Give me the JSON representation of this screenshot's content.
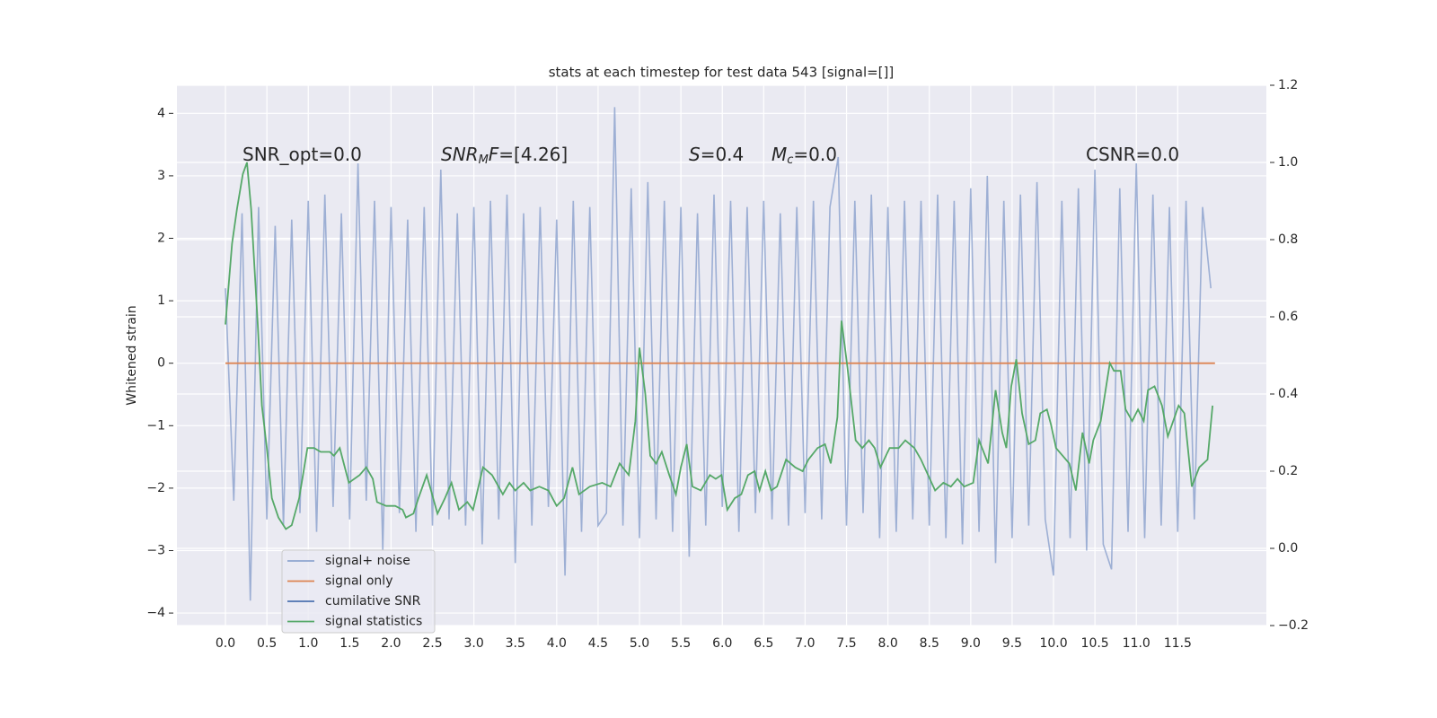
{
  "chart_data": {
    "type": "line",
    "title": "stats at each timestep for test data 543 [signal=[]]",
    "ylabel": "Whitened strain",
    "xlim": [
      -0.586,
      12.57
    ],
    "ylim": [
      -4.2,
      4.45
    ],
    "y2lim": [
      -0.2,
      1.2
    ],
    "grid": true,
    "legend": "lower left",
    "xticks": [
      {
        "value": 0,
        "label": "0.0"
      },
      0.5,
      {
        "value": 1,
        "label": "1.0"
      },
      1.5,
      {
        "value": 2,
        "label": "2.0"
      },
      2.5,
      {
        "value": 3,
        "label": "3.0"
      },
      3.5,
      {
        "value": 4,
        "label": "4.0"
      },
      4.5,
      {
        "value": 5,
        "label": "5.0"
      },
      5.5,
      {
        "value": 6,
        "label": "6.0"
      },
      6.5,
      {
        "value": 7,
        "label": "7.0"
      },
      7.5,
      {
        "value": 8,
        "label": "8.0"
      },
      8.5,
      {
        "value": 9,
        "label": "9.0"
      },
      9.5,
      {
        "value": 10,
        "label": "10.0"
      },
      10.5,
      {
        "value": 11,
        "label": "11.0"
      },
      11.5
    ],
    "yticks": [
      {
        "value": -4,
        "label": "−4"
      },
      {
        "value": -3,
        "label": "−3"
      },
      {
        "value": -2,
        "label": "−2"
      },
      {
        "value": -1,
        "label": "−1"
      },
      0,
      1,
      2,
      3,
      4
    ],
    "y2ticks": [
      {
        "value": -0.2,
        "label": "−0.2"
      },
      {
        "value": 0,
        "label": "0.0"
      },
      0.2,
      0.4,
      0.6,
      0.8,
      {
        "value": 1,
        "label": "1.0"
      },
      1.2
    ],
    "annotations": [
      [
        {
          "text": "SNR_opt=0.0"
        }
      ],
      [
        {
          "text": "SNR",
          "italic": true
        },
        {
          "text": "M",
          "italic": true,
          "sub": true
        },
        {
          "text": "F",
          "italic": true
        },
        {
          "text": "=[4.26]"
        }
      ],
      [
        {
          "text": "S",
          "italic": true
        },
        {
          "text": "=0.4"
        }
      ],
      [
        {
          "text": "M",
          "italic": true
        },
        {
          "text": "c",
          "italic": true,
          "sub": true
        },
        {
          "text": "=0.0"
        }
      ],
      [
        {
          "text": "CSNR=0.0"
        }
      ]
    ],
    "series": [
      {
        "name": "signal+ noise",
        "color": "#8fa5cf",
        "x": [
          0,
          0.1,
          0.2,
          0.3,
          0.4,
          0.5,
          0.6,
          0.7,
          0.8,
          0.9,
          1,
          1.1,
          1.2,
          1.3,
          1.4,
          1.5,
          1.6,
          1.7,
          1.8,
          1.9,
          2,
          2.1,
          2.2,
          2.3,
          2.4,
          2.5,
          2.6,
          2.7,
          2.8,
          2.9,
          3,
          3.1,
          3.2,
          3.3,
          3.4,
          3.5,
          3.6,
          3.7,
          3.8,
          3.9,
          4,
          4.1,
          4.2,
          4.3,
          4.4,
          4.5,
          4.6,
          4.7,
          4.8,
          4.9,
          5,
          5.1,
          5.2,
          5.3,
          5.4,
          5.5,
          5.6,
          5.7,
          5.8,
          5.9,
          6,
          6.1,
          6.2,
          6.3,
          6.4,
          6.5,
          6.6,
          6.7,
          6.8,
          6.9,
          7,
          7.1,
          7.2,
          7.3,
          7.4,
          7.5,
          7.6,
          7.7,
          7.8,
          7.9,
          8,
          8.1,
          8.2,
          8.3,
          8.4,
          8.5,
          8.6,
          8.7,
          8.8,
          8.9,
          9,
          9.1,
          9.2,
          9.3,
          9.4,
          9.5,
          9.6,
          9.7,
          9.8,
          9.9,
          10,
          10.1,
          10.2,
          10.3,
          10.4,
          10.5,
          10.6,
          10.7,
          10.8,
          10.9,
          11,
          11.1,
          11.2,
          11.3,
          11.4,
          11.5,
          11.6,
          11.7,
          11.8,
          11.9
        ],
        "values": [
          1.2,
          -2.2,
          2.4,
          -3.8,
          2.5,
          -2.5,
          2.2,
          -2.6,
          2.3,
          -2.4,
          2.6,
          -2.7,
          2.7,
          -2.3,
          2.4,
          -2.5,
          3.2,
          -2.2,
          2.6,
          -3.0,
          2.5,
          -2.4,
          2.3,
          -2.7,
          2.5,
          -2.6,
          3.1,
          -2.5,
          2.4,
          -2.6,
          2.5,
          -2.9,
          2.6,
          -2.5,
          2.7,
          -3.2,
          2.4,
          -2.6,
          2.5,
          -2.3,
          2.3,
          -3.4,
          2.6,
          -2.7,
          2.5,
          -2.6,
          -2.4,
          4.1,
          -2.6,
          2.8,
          -2.8,
          2.9,
          -2.5,
          2.6,
          -2.7,
          2.5,
          -3.1,
          2.4,
          -2.6,
          2.7,
          -2.3,
          2.6,
          -2.7,
          2.5,
          -2.4,
          2.6,
          -2.5,
          2.4,
          -2.6,
          2.5,
          -2.4,
          2.6,
          -2.5,
          2.5,
          3.3,
          -2.6,
          2.6,
          -2.4,
          2.7,
          -2.8,
          2.5,
          -2.7,
          2.6,
          -2.5,
          2.6,
          -2.6,
          2.7,
          -2.8,
          2.6,
          -2.9,
          2.8,
          -2.7,
          3.0,
          -3.2,
          2.6,
          -2.8,
          2.7,
          -2.6,
          2.9,
          -2.5,
          -3.4,
          2.6,
          -2.8,
          2.8,
          -3.0,
          3.1,
          -2.9,
          -3.3,
          2.8,
          -2.7,
          3.2,
          -2.8,
          2.7,
          -2.6,
          2.5,
          -2.7,
          2.6,
          -2.5,
          2.5,
          1.2
        ]
      },
      {
        "name": "signal only",
        "color": "#dd8452",
        "x": [
          0,
          11.95
        ],
        "values": [
          0,
          0
        ]
      },
      {
        "name": "cumilative SNR",
        "color": "#4c72b0",
        "x": [],
        "values": []
      },
      {
        "name": "signal statistics",
        "color": "#55a868",
        "axis": "y2",
        "x": [
          0,
          0.08,
          0.14,
          0.21,
          0.26,
          0.31,
          0.39,
          0.44,
          0.5,
          0.56,
          0.64,
          0.73,
          0.8,
          0.89,
          0.99,
          1.07,
          1.15,
          1.26,
          1.31,
          1.38,
          1.49,
          1.62,
          1.7,
          1.78,
          1.83,
          1.94,
          2.05,
          2.14,
          2.18,
          2.27,
          2.33,
          2.43,
          2.56,
          2.65,
          2.73,
          2.82,
          2.92,
          2.99,
          3.11,
          3.22,
          3.35,
          3.43,
          3.5,
          3.6,
          3.68,
          3.79,
          3.9,
          4.0,
          4.09,
          4.19,
          4.27,
          4.4,
          4.55,
          4.65,
          4.76,
          4.87,
          4.95,
          5.0,
          5.07,
          5.13,
          5.2,
          5.27,
          5.36,
          5.44,
          5.5,
          5.57,
          5.64,
          5.74,
          5.85,
          5.92,
          5.99,
          6.06,
          6.15,
          6.23,
          6.31,
          6.39,
          6.45,
          6.52,
          6.59,
          6.66,
          6.77,
          6.88,
          6.97,
          7.04,
          7.15,
          7.24,
          7.31,
          7.39,
          7.44,
          7.51,
          7.61,
          7.69,
          7.77,
          7.84,
          7.91,
          8.02,
          8.13,
          8.21,
          8.32,
          8.4,
          8.57,
          8.67,
          8.76,
          8.84,
          8.92,
          9.03,
          9.1,
          9.21,
          9.3,
          9.38,
          9.43,
          9.49,
          9.55,
          9.62,
          9.7,
          9.78,
          9.84,
          9.92,
          9.97,
          10.03,
          10.19,
          10.27,
          10.35,
          10.43,
          10.48,
          10.57,
          10.68,
          10.73,
          10.81,
          10.87,
          10.95,
          11.02,
          11.09,
          11.14,
          11.22,
          11.31,
          11.38,
          11.51,
          11.58,
          11.67,
          11.76,
          11.86,
          11.92
        ],
        "values": [
          0.58,
          0.79,
          0.88,
          0.97,
          1.0,
          0.88,
          0.58,
          0.37,
          0.26,
          0.13,
          0.08,
          0.05,
          0.06,
          0.13,
          0.26,
          0.26,
          0.25,
          0.25,
          0.24,
          0.26,
          0.17,
          0.19,
          0.21,
          0.18,
          0.12,
          0.11,
          0.11,
          0.1,
          0.08,
          0.09,
          0.13,
          0.19,
          0.09,
          0.13,
          0.17,
          0.1,
          0.12,
          0.1,
          0.21,
          0.19,
          0.14,
          0.17,
          0.15,
          0.17,
          0.15,
          0.16,
          0.15,
          0.11,
          0.13,
          0.21,
          0.14,
          0.16,
          0.17,
          0.16,
          0.22,
          0.19,
          0.33,
          0.52,
          0.4,
          0.24,
          0.22,
          0.25,
          0.19,
          0.14,
          0.21,
          0.27,
          0.16,
          0.15,
          0.19,
          0.18,
          0.19,
          0.1,
          0.13,
          0.14,
          0.19,
          0.2,
          0.15,
          0.2,
          0.15,
          0.16,
          0.23,
          0.21,
          0.2,
          0.23,
          0.26,
          0.27,
          0.22,
          0.34,
          0.59,
          0.47,
          0.28,
          0.26,
          0.28,
          0.26,
          0.21,
          0.26,
          0.26,
          0.28,
          0.26,
          0.23,
          0.15,
          0.17,
          0.16,
          0.18,
          0.16,
          0.17,
          0.28,
          0.22,
          0.41,
          0.3,
          0.26,
          0.42,
          0.49,
          0.35,
          0.27,
          0.28,
          0.35,
          0.36,
          0.32,
          0.26,
          0.22,
          0.15,
          0.3,
          0.22,
          0.28,
          0.33,
          0.48,
          0.46,
          0.46,
          0.36,
          0.33,
          0.36,
          0.33,
          0.41,
          0.42,
          0.37,
          0.29,
          0.37,
          0.35,
          0.16,
          0.21,
          0.23,
          0.37
        ]
      }
    ]
  }
}
